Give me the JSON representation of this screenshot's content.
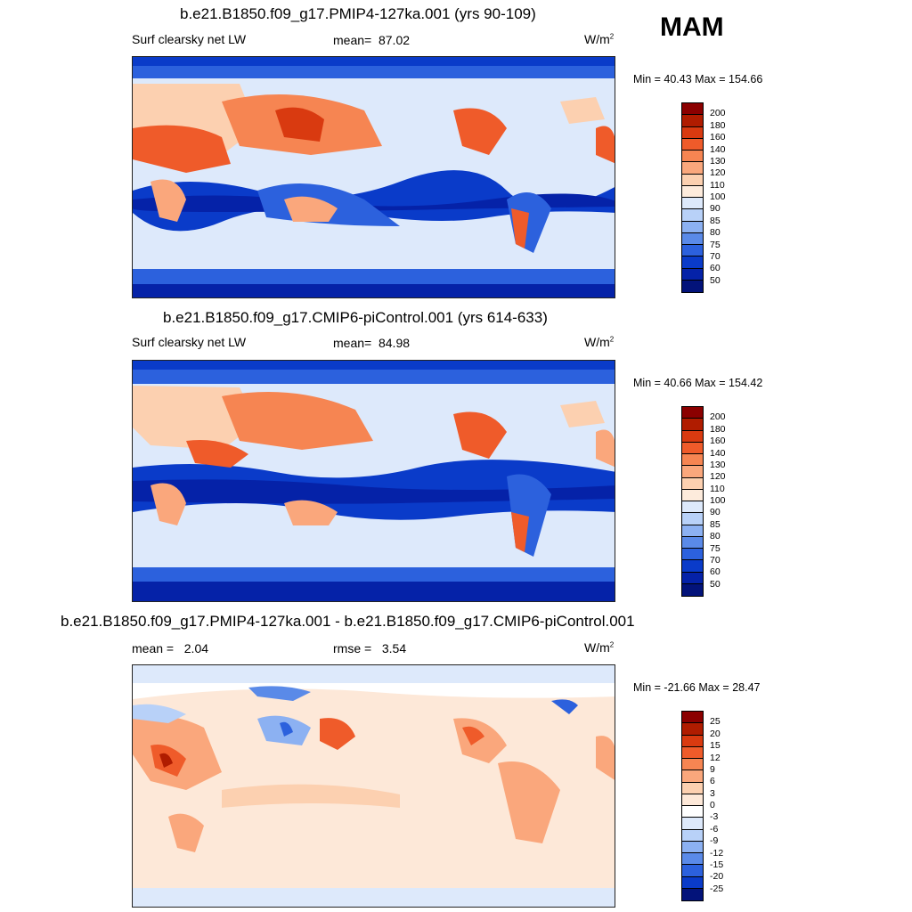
{
  "season": "MAM",
  "panels": [
    {
      "title": "b.e21.B1850.f09_g17.PMIP4-127ka.001 (yrs 90-109)",
      "variable": "Surf clearsky net LW",
      "stat1_label": "mean=",
      "stat1_value": "87.02",
      "units": "W/m",
      "units_exp": "2",
      "min_label": "Min =",
      "min_value": "40.43",
      "max_label": "Max =",
      "max_value": "154.66"
    },
    {
      "title": "b.e21.B1850.f09_g17.CMIP6-piControl.001 (yrs 614-633)",
      "variable": "Surf clearsky net LW",
      "stat1_label": "mean=",
      "stat1_value": "84.98",
      "units": "W/m",
      "units_exp": "2",
      "min_label": "Min =",
      "min_value": "40.66",
      "max_label": "Max =",
      "max_value": "154.42"
    },
    {
      "title": "b.e21.B1850.f09_g17.PMIP4-127ka.001 - b.e21.B1850.f09_g17.CMIP6-piControl.001",
      "stat1_label": "mean =",
      "stat1_value": "2.04",
      "stat2_label": "rmse =",
      "stat2_value": "3.54",
      "units": "W/m",
      "units_exp": "2",
      "min_label": "Min =",
      "min_value": "-21.66",
      "max_label": "Max =",
      "max_value": "28.47"
    }
  ],
  "chart_data": [
    {
      "type": "heatmap",
      "title": "b.e21.B1850.f09_g17.PMIP4-127ka.001 (yrs 90-109)",
      "variable": "Surf clearsky net LW",
      "units": "W/m2",
      "mean": 87.02,
      "min": 40.43,
      "max": 154.66,
      "colorbar_levels": [
        200,
        180,
        160,
        140,
        130,
        120,
        110,
        100,
        90,
        85,
        80,
        75,
        70,
        60,
        50
      ],
      "colorbar_colors": [
        "#8b0000",
        "#b01c00",
        "#d93a10",
        "#ef5b2a",
        "#f68552",
        "#faa77c",
        "#fcd0b0",
        "#fdebdc",
        "#dde9fb",
        "#b8d1f8",
        "#8cb1f2",
        "#5a8ae8",
        "#2c61dd",
        "#0a3bc9",
        "#0522a8",
        "#03137a"
      ]
    },
    {
      "type": "heatmap",
      "title": "b.e21.B1850.f09_g17.CMIP6-piControl.001 (yrs 614-633)",
      "variable": "Surf clearsky net LW",
      "units": "W/m2",
      "mean": 84.98,
      "min": 40.66,
      "max": 154.42,
      "colorbar_levels": [
        200,
        180,
        160,
        140,
        130,
        120,
        110,
        100,
        90,
        85,
        80,
        75,
        70,
        60,
        50
      ],
      "colorbar_colors": [
        "#8b0000",
        "#b01c00",
        "#d93a10",
        "#ef5b2a",
        "#f68552",
        "#faa77c",
        "#fcd0b0",
        "#fdebdc",
        "#dde9fb",
        "#b8d1f8",
        "#8cb1f2",
        "#5a8ae8",
        "#2c61dd",
        "#0a3bc9",
        "#0522a8",
        "#03137a"
      ]
    },
    {
      "type": "heatmap",
      "title": "b.e21.B1850.f09_g17.PMIP4-127ka.001 - b.e21.B1850.f09_g17.CMIP6-piControl.001",
      "units": "W/m2",
      "mean": 2.04,
      "rmse": 3.54,
      "min": -21.66,
      "max": 28.47,
      "colorbar_levels": [
        25,
        20,
        15,
        12,
        9,
        6,
        3,
        0,
        -3,
        -6,
        -9,
        -12,
        -15,
        -20,
        -25
      ],
      "colorbar_colors": [
        "#8b0000",
        "#b01c00",
        "#d93a10",
        "#ef5b2a",
        "#f68552",
        "#faa77c",
        "#fcd0b0",
        "#fde8d8",
        "#ffffff",
        "#dde9fb",
        "#b8d1f8",
        "#8cb1f2",
        "#5a8ae8",
        "#2c61dd",
        "#0a3bc9",
        "#03137a"
      ]
    }
  ]
}
